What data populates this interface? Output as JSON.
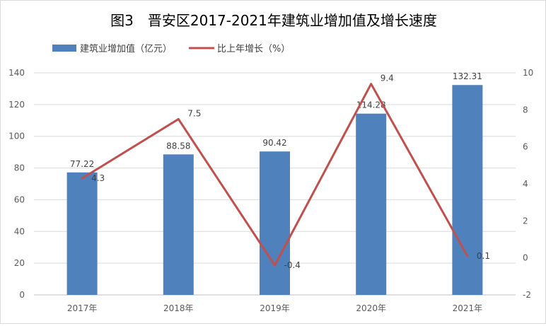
{
  "chart_data": {
    "type": "bar",
    "title": "图3　晋安区2017-2021年建筑业增加值及增长速度",
    "categories": [
      "2017年",
      "2018年",
      "2019年",
      "2020年",
      "2021年"
    ],
    "series": [
      {
        "name": "建筑业增加值（亿元）",
        "type": "bar",
        "axis": "left",
        "values": [
          77.22,
          88.58,
          90.42,
          114.28,
          132.31
        ],
        "color": "#4f81bd"
      },
      {
        "name": "比上年增长（%）",
        "type": "line",
        "axis": "right",
        "values": [
          4.3,
          7.5,
          -0.4,
          9.4,
          0.1
        ],
        "color": "#c0504d"
      }
    ],
    "data_labels": {
      "bar": [
        "77.22",
        "88.58",
        "90.42",
        "114.28",
        "132.31"
      ],
      "line": [
        "4.3",
        "7.5",
        "-0.4",
        "9.4",
        "0.1"
      ]
    },
    "y_left": {
      "ylim": [
        0,
        140
      ],
      "ticks": [
        "0",
        "20",
        "40",
        "60",
        "80",
        "100",
        "120",
        "140"
      ]
    },
    "y_right": {
      "ylim": [
        -2,
        10
      ],
      "ticks": [
        "-2",
        "0",
        "2",
        "4",
        "6",
        "8",
        "10"
      ]
    },
    "grid": true,
    "legend_position": "top-left"
  }
}
